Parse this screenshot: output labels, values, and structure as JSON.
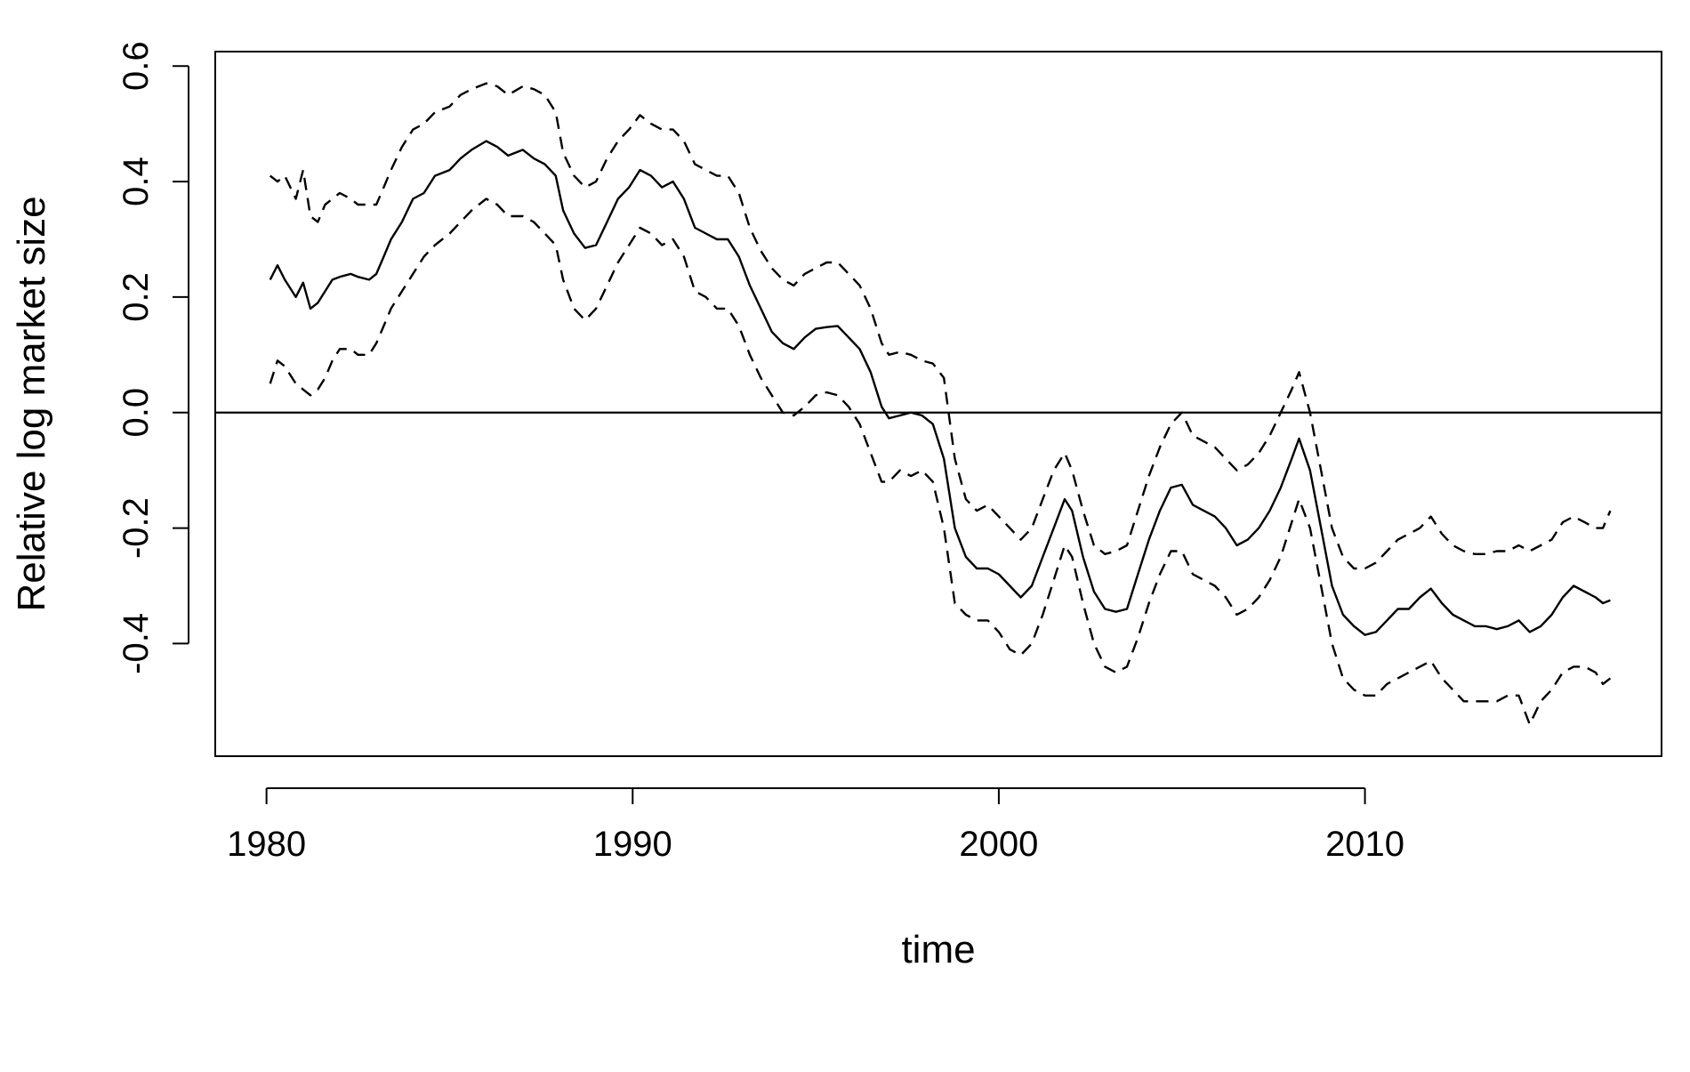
{
  "chart_data": {
    "type": "line",
    "title": "",
    "xlabel": "time",
    "ylabel": "Relative log market size",
    "xlim": [
      1978.6,
      2018.1
    ],
    "ylim": [
      -0.595,
      0.625
    ],
    "x_ticks": [
      1980,
      1990,
      2000,
      2010
    ],
    "x_tick_labels": [
      "1980",
      "1990",
      "2000",
      "2010"
    ],
    "y_ticks": [
      -0.4,
      -0.2,
      0.0,
      0.2,
      0.4,
      0.6
    ],
    "y_tick_labels": [
      "-0.4",
      "-0.2",
      "0.0",
      "0.2",
      "0.4",
      "0.6"
    ],
    "reference_line": {
      "y": 0.0,
      "style": "solid"
    },
    "grid": false,
    "legend": "none",
    "series": [
      {
        "style": "solid",
        "x": [
          1980.1,
          1980.3,
          1980.5,
          1980.8,
          1981.0,
          1981.2,
          1981.4,
          1981.6,
          1981.8,
          1982.0,
          1982.3,
          1982.5,
          1982.8,
          1983.0,
          1983.2,
          1983.4,
          1983.7,
          1984.0,
          1984.3,
          1984.6,
          1985.0,
          1985.3,
          1985.6,
          1986.0,
          1986.3,
          1986.6,
          1987.0,
          1987.3,
          1987.6,
          1987.9,
          1988.1,
          1988.4,
          1988.7,
          1989.0,
          1989.3,
          1989.6,
          1989.9,
          1990.2,
          1990.5,
          1990.8,
          1991.1,
          1991.4,
          1991.7,
          1992.0,
          1992.3,
          1992.6,
          1992.9,
          1993.2,
          1993.5,
          1993.8,
          1994.1,
          1994.4,
          1994.7,
          1995.0,
          1995.3,
          1995.6,
          1995.9,
          1996.2,
          1996.5,
          1996.8,
          1997.0,
          1997.3,
          1997.6,
          1997.9,
          1998.2,
          1998.5,
          1998.8,
          1999.1,
          1999.4,
          1999.7,
          2000.0,
          2000.3,
          2000.6,
          2000.9,
          2001.2,
          2001.5,
          2001.8,
          2002.0,
          2002.3,
          2002.6,
          2002.9,
          2003.2,
          2003.5,
          2003.8,
          2004.1,
          2004.4,
          2004.7,
          2005.0,
          2005.3,
          2005.6,
          2005.9,
          2006.2,
          2006.5,
          2006.8,
          2007.1,
          2007.4,
          2007.7,
          2008.0,
          2008.2,
          2008.5,
          2008.8,
          2009.1,
          2009.4,
          2009.7,
          2010.0,
          2010.3,
          2010.6,
          2010.9,
          2011.2,
          2011.5,
          2011.8,
          2012.1,
          2012.4,
          2012.7,
          2013.0,
          2013.3,
          2013.6,
          2013.9,
          2014.2,
          2014.5,
          2014.8,
          2015.1,
          2015.4,
          2015.7,
          2016.0,
          2016.3,
          2016.5,
          2016.7
        ],
        "y": [
          0.23,
          0.255,
          0.23,
          0.2,
          0.225,
          0.18,
          0.19,
          0.21,
          0.23,
          0.235,
          0.24,
          0.235,
          0.23,
          0.24,
          0.27,
          0.3,
          0.33,
          0.37,
          0.38,
          0.41,
          0.42,
          0.44,
          0.455,
          0.47,
          0.46,
          0.445,
          0.455,
          0.44,
          0.43,
          0.41,
          0.35,
          0.31,
          0.285,
          0.29,
          0.33,
          0.37,
          0.39,
          0.42,
          0.41,
          0.39,
          0.4,
          0.37,
          0.32,
          0.31,
          0.3,
          0.3,
          0.27,
          0.22,
          0.18,
          0.14,
          0.12,
          0.11,
          0.13,
          0.145,
          0.148,
          0.15,
          0.13,
          0.11,
          0.07,
          0.01,
          -0.01,
          -0.005,
          0.0,
          -0.005,
          -0.02,
          -0.08,
          -0.2,
          -0.25,
          -0.27,
          -0.27,
          -0.28,
          -0.3,
          -0.32,
          -0.3,
          -0.25,
          -0.2,
          -0.15,
          -0.17,
          -0.25,
          -0.31,
          -0.34,
          -0.345,
          -0.34,
          -0.28,
          -0.22,
          -0.17,
          -0.13,
          -0.125,
          -0.16,
          -0.17,
          -0.18,
          -0.2,
          -0.23,
          -0.22,
          -0.2,
          -0.17,
          -0.13,
          -0.08,
          -0.045,
          -0.1,
          -0.2,
          -0.3,
          -0.35,
          -0.37,
          -0.385,
          -0.38,
          -0.36,
          -0.34,
          -0.34,
          -0.32,
          -0.305,
          -0.33,
          -0.35,
          -0.36,
          -0.37,
          -0.37,
          -0.375,
          -0.37,
          -0.36,
          -0.38,
          -0.37,
          -0.35,
          -0.32,
          -0.3,
          -0.31,
          -0.32,
          -0.33,
          -0.325
        ]
      },
      {
        "style": "dashed",
        "x": [
          1980.1,
          1980.3,
          1980.5,
          1980.8,
          1981.0,
          1981.2,
          1981.4,
          1981.6,
          1981.8,
          1982.0,
          1982.3,
          1982.5,
          1982.8,
          1983.0,
          1983.2,
          1983.4,
          1983.7,
          1984.0,
          1984.3,
          1984.6,
          1985.0,
          1985.3,
          1985.6,
          1986.0,
          1986.3,
          1986.6,
          1987.0,
          1987.3,
          1987.6,
          1987.9,
          1988.1,
          1988.4,
          1988.7,
          1989.0,
          1989.3,
          1989.6,
          1989.9,
          1990.2,
          1990.5,
          1990.8,
          1991.1,
          1991.4,
          1991.7,
          1992.0,
          1992.3,
          1992.6,
          1992.9,
          1993.2,
          1993.5,
          1993.8,
          1994.1,
          1994.4,
          1994.7,
          1995.0,
          1995.3,
          1995.6,
          1995.9,
          1996.2,
          1996.5,
          1996.8,
          1997.0,
          1997.3,
          1997.6,
          1997.9,
          1998.2,
          1998.5,
          1998.8,
          1999.1,
          1999.4,
          1999.7,
          2000.0,
          2000.3,
          2000.6,
          2000.9,
          2001.2,
          2001.5,
          2001.8,
          2002.0,
          2002.3,
          2002.6,
          2002.9,
          2003.2,
          2003.5,
          2003.8,
          2004.1,
          2004.4,
          2004.7,
          2005.0,
          2005.3,
          2005.6,
          2005.9,
          2006.2,
          2006.5,
          2006.8,
          2007.1,
          2007.4,
          2007.7,
          2008.0,
          2008.2,
          2008.5,
          2008.8,
          2009.1,
          2009.4,
          2009.7,
          2010.0,
          2010.3,
          2010.6,
          2010.9,
          2011.2,
          2011.5,
          2011.8,
          2012.1,
          2012.4,
          2012.7,
          2013.0,
          2013.3,
          2013.6,
          2013.9,
          2014.2,
          2014.5,
          2014.8,
          2015.1,
          2015.4,
          2015.7,
          2016.0,
          2016.3,
          2016.5,
          2016.7
        ],
        "y": [
          0.41,
          0.4,
          0.41,
          0.37,
          0.42,
          0.34,
          0.33,
          0.36,
          0.37,
          0.38,
          0.37,
          0.36,
          0.36,
          0.36,
          0.39,
          0.42,
          0.46,
          0.49,
          0.5,
          0.52,
          0.53,
          0.55,
          0.56,
          0.57,
          0.565,
          0.55,
          0.565,
          0.56,
          0.55,
          0.52,
          0.45,
          0.41,
          0.39,
          0.4,
          0.44,
          0.47,
          0.49,
          0.515,
          0.5,
          0.49,
          0.49,
          0.47,
          0.43,
          0.42,
          0.41,
          0.41,
          0.38,
          0.32,
          0.28,
          0.25,
          0.23,
          0.22,
          0.24,
          0.25,
          0.26,
          0.26,
          0.24,
          0.22,
          0.18,
          0.12,
          0.1,
          0.105,
          0.1,
          0.09,
          0.085,
          0.06,
          -0.08,
          -0.15,
          -0.17,
          -0.16,
          -0.18,
          -0.2,
          -0.22,
          -0.2,
          -0.15,
          -0.1,
          -0.07,
          -0.1,
          -0.17,
          -0.23,
          -0.245,
          -0.24,
          -0.23,
          -0.17,
          -0.11,
          -0.06,
          -0.02,
          0.0,
          -0.04,
          -0.05,
          -0.06,
          -0.08,
          -0.1,
          -0.09,
          -0.07,
          -0.04,
          0.0,
          0.04,
          0.07,
          0.0,
          -0.1,
          -0.2,
          -0.25,
          -0.27,
          -0.27,
          -0.26,
          -0.24,
          -0.22,
          -0.21,
          -0.2,
          -0.18,
          -0.21,
          -0.23,
          -0.24,
          -0.245,
          -0.245,
          -0.24,
          -0.24,
          -0.23,
          -0.24,
          -0.23,
          -0.22,
          -0.19,
          -0.18,
          -0.19,
          -0.2,
          -0.2,
          -0.17
        ]
      },
      {
        "style": "dashed",
        "x": [
          1980.1,
          1980.3,
          1980.5,
          1980.8,
          1981.0,
          1981.2,
          1981.4,
          1981.6,
          1981.8,
          1982.0,
          1982.3,
          1982.5,
          1982.8,
          1983.0,
          1983.2,
          1983.4,
          1983.7,
          1984.0,
          1984.3,
          1984.6,
          1985.0,
          1985.3,
          1985.6,
          1986.0,
          1986.3,
          1986.6,
          1987.0,
          1987.3,
          1987.6,
          1987.9,
          1988.1,
          1988.4,
          1988.7,
          1989.0,
          1989.3,
          1989.6,
          1989.9,
          1990.2,
          1990.5,
          1990.8,
          1991.1,
          1991.4,
          1991.7,
          1992.0,
          1992.3,
          1992.6,
          1992.9,
          1993.2,
          1993.5,
          1993.8,
          1994.1,
          1994.4,
          1994.7,
          1995.0,
          1995.3,
          1995.6,
          1995.9,
          1996.2,
          1996.5,
          1996.8,
          1997.0,
          1997.3,
          1997.6,
          1997.9,
          1998.2,
          1998.5,
          1998.8,
          1999.1,
          1999.4,
          1999.7,
          2000.0,
          2000.3,
          2000.6,
          2000.9,
          2001.2,
          2001.5,
          2001.8,
          2002.0,
          2002.3,
          2002.6,
          2002.9,
          2003.2,
          2003.5,
          2003.8,
          2004.1,
          2004.4,
          2004.7,
          2005.0,
          2005.3,
          2005.6,
          2005.9,
          2006.2,
          2006.5,
          2006.8,
          2007.1,
          2007.4,
          2007.7,
          2008.0,
          2008.2,
          2008.5,
          2008.8,
          2009.1,
          2009.4,
          2009.7,
          2010.0,
          2010.3,
          2010.6,
          2010.9,
          2011.2,
          2011.5,
          2011.8,
          2012.1,
          2012.4,
          2012.7,
          2013.0,
          2013.3,
          2013.6,
          2013.9,
          2014.2,
          2014.5,
          2014.8,
          2015.1,
          2015.4,
          2015.7,
          2016.0,
          2016.3,
          2016.5,
          2016.7
        ],
        "y": [
          0.05,
          0.09,
          0.08,
          0.05,
          0.04,
          0.03,
          0.04,
          0.06,
          0.09,
          0.11,
          0.11,
          0.1,
          0.1,
          0.12,
          0.15,
          0.18,
          0.21,
          0.24,
          0.27,
          0.29,
          0.31,
          0.33,
          0.35,
          0.37,
          0.36,
          0.34,
          0.34,
          0.33,
          0.31,
          0.29,
          0.23,
          0.18,
          0.16,
          0.18,
          0.22,
          0.26,
          0.29,
          0.32,
          0.31,
          0.29,
          0.3,
          0.27,
          0.21,
          0.2,
          0.18,
          0.18,
          0.15,
          0.1,
          0.06,
          0.03,
          0.0,
          -0.005,
          0.01,
          0.03,
          0.035,
          0.03,
          0.01,
          -0.02,
          -0.07,
          -0.12,
          -0.12,
          -0.1,
          -0.11,
          -0.1,
          -0.12,
          -0.2,
          -0.33,
          -0.35,
          -0.36,
          -0.36,
          -0.38,
          -0.41,
          -0.42,
          -0.4,
          -0.35,
          -0.29,
          -0.23,
          -0.25,
          -0.33,
          -0.4,
          -0.44,
          -0.45,
          -0.44,
          -0.39,
          -0.33,
          -0.28,
          -0.24,
          -0.24,
          -0.28,
          -0.29,
          -0.3,
          -0.32,
          -0.35,
          -0.34,
          -0.32,
          -0.29,
          -0.25,
          -0.19,
          -0.15,
          -0.2,
          -0.3,
          -0.4,
          -0.46,
          -0.48,
          -0.49,
          -0.49,
          -0.47,
          -0.46,
          -0.45,
          -0.44,
          -0.43,
          -0.46,
          -0.48,
          -0.5,
          -0.5,
          -0.5,
          -0.5,
          -0.49,
          -0.49,
          -0.54,
          -0.5,
          -0.48,
          -0.45,
          -0.44,
          -0.44,
          -0.45,
          -0.47,
          -0.46
        ]
      }
    ]
  }
}
